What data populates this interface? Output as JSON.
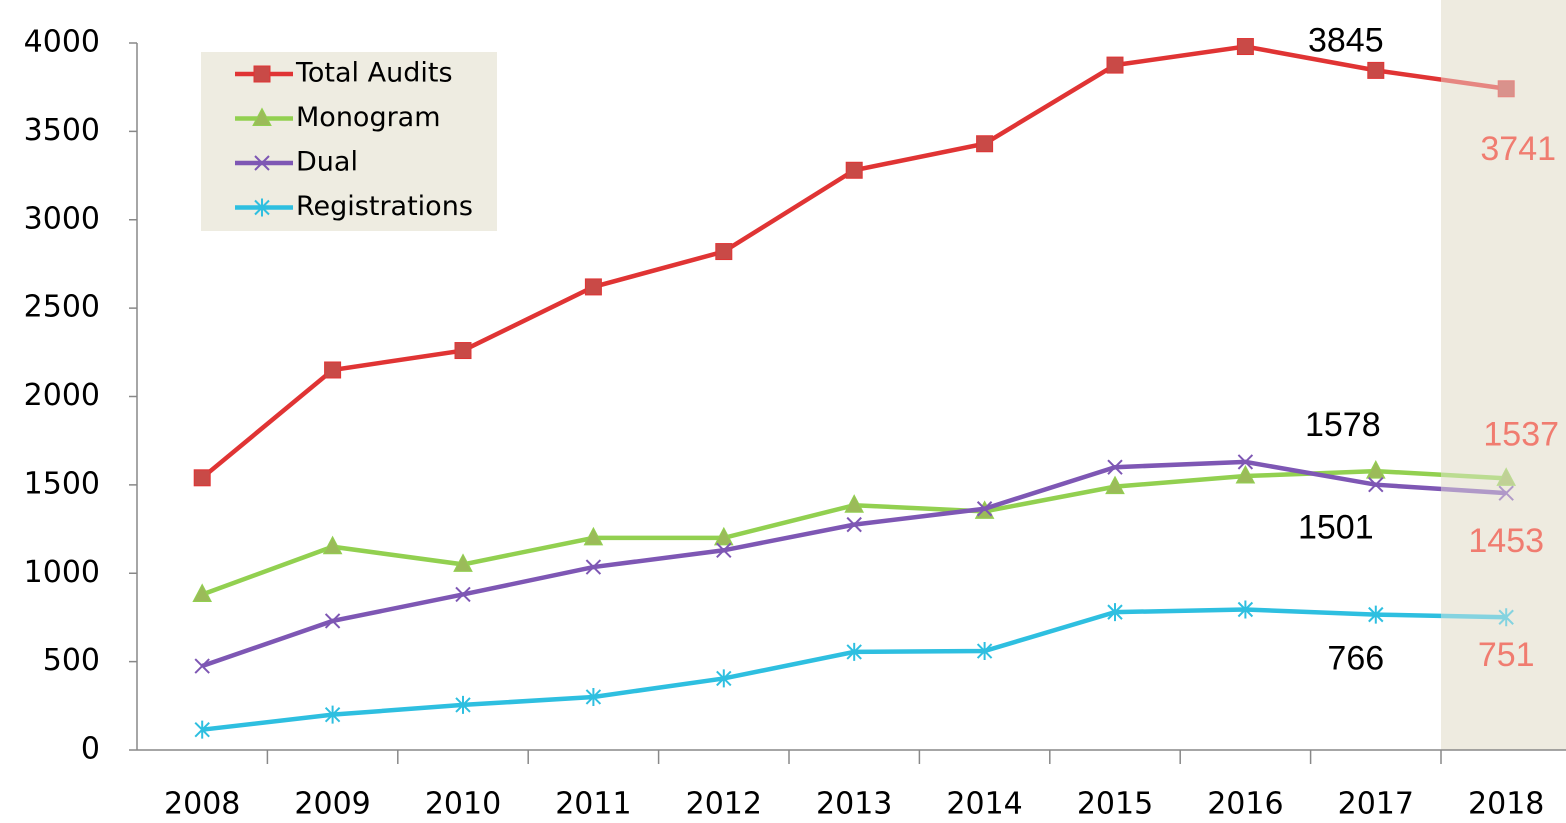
{
  "chart_data": {
    "type": "line",
    "categories": [
      "2008",
      "2009",
      "2010",
      "2011",
      "2012",
      "2013",
      "2014",
      "2015",
      "2016",
      "2017",
      "2018"
    ],
    "series": [
      {
        "name": "Total Audits",
        "color": "#e03434",
        "marker": "square",
        "values": [
          1540,
          2150,
          2260,
          2620,
          2820,
          3280,
          3430,
          3875,
          3980,
          3845,
          3741
        ]
      },
      {
        "name": "Monogram",
        "color": "#92d050",
        "marker": "triangle",
        "values": [
          880,
          1150,
          1050,
          1200,
          1200,
          1385,
          1350,
          1490,
          1550,
          1578,
          1537
        ]
      },
      {
        "name": "Dual",
        "color": "#7e57b4",
        "marker": "x",
        "values": [
          475,
          730,
          880,
          1035,
          1130,
          1275,
          1365,
          1600,
          1630,
          1501,
          1453
        ]
      },
      {
        "name": "Registrations",
        "color": "#2ebfe0",
        "marker": "asterisk",
        "values": [
          115,
          200,
          255,
          300,
          405,
          555,
          560,
          780,
          795,
          766,
          751
        ]
      }
    ],
    "ylim": [
      0,
      4000
    ],
    "yticks": [
      0,
      500,
      1000,
      1500,
      2000,
      2500,
      3000,
      3500,
      4000
    ],
    "grid": false,
    "legend": "upper left"
  }
}
